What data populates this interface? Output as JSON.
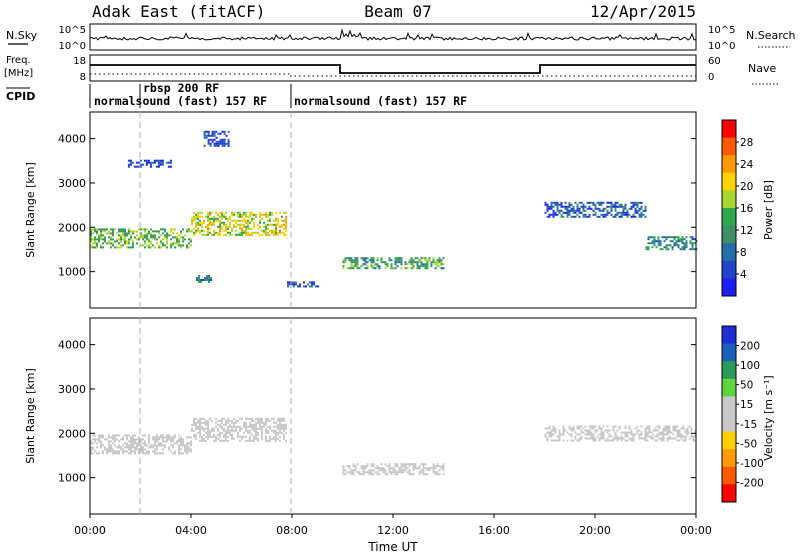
{
  "header": {
    "station": "Adak East (fitACF)",
    "beam": "Beam 07",
    "date": "12/Apr/2015"
  },
  "top_panels": {
    "nsky_label": "N.Sky",
    "nsearch_label": "N.Search",
    "freq_label_1": "Freq.",
    "freq_label_2": "[MHz]",
    "nave_label": "Nave",
    "cpid_label": "CPID",
    "left_ticks_noise": [
      "10^5",
      "10^0"
    ],
    "right_ticks_noise": [
      "10^5",
      "10^0"
    ],
    "left_ticks_freq": [
      "18",
      "8"
    ],
    "right_ticks_nave": [
      "60",
      "0"
    ],
    "cpid_segments": [
      {
        "start_hour": 0.0,
        "label": "normalsound (fast) 157 RF"
      },
      {
        "start_hour": 2.0,
        "label": "rbsp 200 RF"
      },
      {
        "start_hour": 8.0,
        "label": "normalsound (fast) 157 RF"
      }
    ]
  },
  "panels": {
    "power": {
      "ylabel": "Slant Range [km]",
      "colorbar_label": "Power [dB]",
      "colorbar_ticks": [
        "28",
        "24",
        "20",
        "16",
        "12",
        "8",
        "4"
      ],
      "colorbar_colors": [
        "#ff0000",
        "#ff5a00",
        "#ff9b00",
        "#ffd200",
        "#a8d630",
        "#2ea84a",
        "#3e8f68",
        "#236ea8",
        "#1f45c8",
        "#1e1ef5"
      ]
    },
    "velocity": {
      "ylabel": "Slant Range [km]",
      "colorbar_label": "Velocity [m s⁻¹]",
      "colorbar_ticks": [
        "200",
        "100",
        "50",
        "15",
        "-15",
        "-50",
        "-100",
        "-200"
      ],
      "colorbar_colors": [
        "#1e2fd6",
        "#1f60b8",
        "#2a9a5a",
        "#60d43c",
        "#c8c8c8",
        "#c8c8c8",
        "#ffcf00",
        "#ff9b00",
        "#ff5a00",
        "#ff0000"
      ]
    }
  },
  "xaxis": {
    "label": "Time UT",
    "ticks": [
      "00:00",
      "04:00",
      "08:00",
      "12:00",
      "16:00",
      "20:00",
      "00:00"
    ]
  },
  "chart_data": [
    {
      "type": "heatmap",
      "title": "Power",
      "ylabel": "Slant Range [km]",
      "xlabel": "Time UT",
      "xlim_hours": [
        0,
        24
      ],
      "ylim_km": [
        180,
        4600
      ],
      "yticks": [
        1000,
        2000,
        3000,
        4000
      ],
      "colorbar": {
        "label": "Power [dB]",
        "ticks": [
          4,
          8,
          12,
          16,
          20,
          24,
          28
        ],
        "range": [
          0,
          30
        ]
      },
      "echo_regions": [
        {
          "t_start": 0.0,
          "t_end": 4.0,
          "range_center_km": 1750,
          "thickness_km": 450,
          "power_db": 14
        },
        {
          "t_start": 4.0,
          "t_end": 7.8,
          "range_center_km": 2100,
          "thickness_km": 500,
          "power_db": 18
        },
        {
          "t_start": 1.5,
          "t_end": 3.2,
          "range_center_km": 3450,
          "thickness_km": 150,
          "power_db": 4
        },
        {
          "t_start": 4.5,
          "t_end": 5.5,
          "range_center_km": 4000,
          "thickness_km": 350,
          "power_db": 4
        },
        {
          "t_start": 4.2,
          "t_end": 4.8,
          "range_center_km": 850,
          "thickness_km": 150,
          "power_db": 8
        },
        {
          "t_start": 7.8,
          "t_end": 9.0,
          "range_center_km": 720,
          "thickness_km": 120,
          "power_db": 6
        },
        {
          "t_start": 10.0,
          "t_end": 14.0,
          "range_center_km": 1200,
          "thickness_km": 250,
          "power_db": 12
        },
        {
          "t_start": 18.0,
          "t_end": 22.0,
          "range_center_km": 2400,
          "thickness_km": 350,
          "power_db": 6
        },
        {
          "t_start": 22.0,
          "t_end": 24.0,
          "range_center_km": 1650,
          "thickness_km": 300,
          "power_db": 10
        }
      ]
    },
    {
      "type": "heatmap",
      "title": "Velocity",
      "ylabel": "Slant Range [km]",
      "xlabel": "Time UT",
      "xlim_hours": [
        0,
        24
      ],
      "ylim_km": [
        180,
        4600
      ],
      "yticks": [
        1000,
        2000,
        3000,
        4000
      ],
      "colorbar": {
        "label": "Velocity [m s⁻¹]",
        "ticks": [
          -200,
          -100,
          -50,
          -15,
          15,
          50,
          100,
          200
        ],
        "range": [
          -250,
          250
        ]
      },
      "echo_regions": [
        {
          "t_start": 0.0,
          "t_end": 4.0,
          "range_center_km": 1750,
          "thickness_km": 450,
          "velocity": -5
        },
        {
          "t_start": 4.0,
          "t_end": 7.8,
          "range_center_km": 2100,
          "thickness_km": 500,
          "velocity": -40
        },
        {
          "t_start": 10.0,
          "t_end": 14.0,
          "range_center_km": 1200,
          "thickness_km": 250,
          "velocity": 30
        },
        {
          "t_start": 18.0,
          "t_end": 24.0,
          "range_center_km": 2000,
          "thickness_km": 350,
          "velocity": 0
        }
      ]
    }
  ]
}
